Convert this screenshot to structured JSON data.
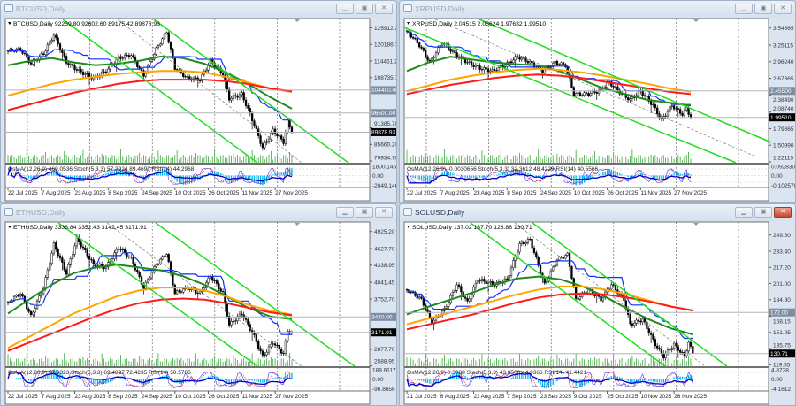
{
  "windows": [
    {
      "title": "BTCUSD,Daily",
      "active": false,
      "ohlc_header": "BTCUSD,Daily  92259.80 92602.60 89175.42 89878.93",
      "osc_header": "OsMA(12,26,9) 469.0536  Stoch(5,3,3) 57.2924 89.4697  RSI(14) 44.2968",
      "price_ticks": [
        "125912.20",
        "120186.70",
        "114461.20",
        "108735.70",
        "91385.70",
        "85660.20",
        "79934.70"
      ],
      "levels": [
        {
          "price": 104400.0,
          "label": "104400.00"
        },
        {
          "price": 96500.0,
          "label": "96500.00"
        }
      ],
      "current_price": {
        "price": 89878.93,
        "label": "89878.93"
      },
      "osc_ticks": [
        "1800.1453",
        "0.00",
        "-2049.146"
      ],
      "date_labels": [
        "22 Jul 2025",
        "7 Aug 2025",
        "23 Aug 2025",
        "8 Sep 2025",
        "24 Sep 2025",
        "10 Oct 2025",
        "26 Oct 2025",
        "11 Nov 2025",
        "27 Nov 2025"
      ],
      "ylim": [
        79324,
        128814
      ],
      "closes": [
        [
          "2025-07-22",
          118000
        ],
        [
          "2025-07-28",
          118500
        ],
        [
          "2025-08-02",
          113500
        ],
        [
          "2025-08-08",
          117000
        ],
        [
          "2025-08-13",
          123500
        ],
        [
          "2025-08-19",
          114000
        ],
        [
          "2025-08-25",
          111000
        ],
        [
          "2025-09-01",
          108500
        ],
        [
          "2025-09-07",
          111000
        ],
        [
          "2025-09-13",
          115500
        ],
        [
          "2025-09-19",
          116500
        ],
        [
          "2025-09-25",
          109500
        ],
        [
          "2025-10-01",
          118500
        ],
        [
          "2025-10-06",
          124500
        ],
        [
          "2025-10-10",
          112000
        ],
        [
          "2025-10-16",
          108500
        ],
        [
          "2025-10-22",
          108000
        ],
        [
          "2025-10-27",
          114500
        ],
        [
          "2025-11-02",
          110000
        ],
        [
          "2025-11-05",
          101500
        ],
        [
          "2025-11-11",
          103000
        ],
        [
          "2025-11-17",
          92500
        ],
        [
          "2025-11-21",
          84500
        ],
        [
          "2025-11-26",
          90500
        ],
        [
          "2025-12-01",
          86500
        ],
        [
          "2025-12-03",
          93500
        ],
        [
          "2025-12-05",
          89878.93
        ]
      ],
      "ma": [
        {
          "color": "#1f8a1f",
          "values": [
            113000,
            114500,
            115500,
            114000,
            113000,
            113500,
            114500,
            116000,
            115500,
            113500,
            110500,
            106500,
            102000,
            98000
          ]
        },
        {
          "color": "#ffa500",
          "values": [
            102500,
            104500,
            106500,
            108000,
            109000,
            110000,
            110500,
            111000,
            111000,
            110500,
            109000,
            107000,
            105000,
            103800
          ]
        },
        {
          "color": "#ff1a1a",
          "values": [
            97500,
            99500,
            101500,
            103500,
            105000,
            106500,
            107500,
            108000,
            108000,
            108000,
            107500,
            106500,
            105000,
            104000
          ]
        }
      ]
    },
    {
      "title": "XRPUSD,Daily",
      "active": false,
      "ohlc_header": "XRPUSD,Daily  2.04515 2.05624 1.97632 1.99510",
      "osc_header": "OsMA(12,26,9) -0.0030656  Stoch(5,3,3) 32.3612 48.4229  RSI(14) 40.5566",
      "price_ticks": [
        "3.54865",
        "3.25115",
        "2.96240",
        "2.67365",
        "2.38490",
        "2.08740",
        "1.79865",
        "1.50990",
        "1.22115"
      ],
      "levels": [
        {
          "price": 2.455,
          "label": "2.45500"
        }
      ],
      "current_price": {
        "price": 1.9951,
        "label": "1.99510"
      },
      "osc_ticks": [
        "0.0928301",
        "0.00",
        "-0.102570"
      ],
      "date_labels": [
        "22 Jul 2025",
        "7 Aug 2025",
        "23 Aug 2025",
        "8 Sep 2025",
        "24 Sep 2025",
        "10 Oct 2025",
        "26 Oct 2025",
        "11 Nov 2025",
        "27 Nov 2025"
      ],
      "ylim": [
        1.2058,
        3.6979
      ],
      "closes": [
        [
          "2025-07-22",
          3.5
        ],
        [
          "2025-07-28",
          3.25
        ],
        [
          "2025-08-02",
          2.95
        ],
        [
          "2025-08-08",
          3.3
        ],
        [
          "2025-08-14",
          3.1
        ],
        [
          "2025-08-20",
          2.95
        ],
        [
          "2025-08-26",
          2.85
        ],
        [
          "2025-09-01",
          2.8
        ],
        [
          "2025-09-07",
          2.9
        ],
        [
          "2025-09-13",
          3.05
        ],
        [
          "2025-09-19",
          2.95
        ],
        [
          "2025-09-25",
          2.8
        ],
        [
          "2025-10-01",
          2.95
        ],
        [
          "2025-10-06",
          2.9
        ],
        [
          "2025-10-10",
          2.4
        ],
        [
          "2025-10-16",
          2.4
        ],
        [
          "2025-10-22",
          2.45
        ],
        [
          "2025-10-27",
          2.6
        ],
        [
          "2025-11-02",
          2.4
        ],
        [
          "2025-11-06",
          2.3
        ],
        [
          "2025-11-11",
          2.45
        ],
        [
          "2025-11-17",
          2.2
        ],
        [
          "2025-11-21",
          1.95
        ],
        [
          "2025-11-26",
          2.2
        ],
        [
          "2025-12-01",
          2.05
        ],
        [
          "2025-12-03",
          2.15
        ],
        [
          "2025-12-05",
          1.9951
        ]
      ],
      "ma": [
        {
          "color": "#1f8a1f",
          "values": [
            2.8,
            2.95,
            3.05,
            3.0,
            2.95,
            2.92,
            2.9,
            2.8,
            2.65,
            2.5,
            2.4,
            2.3,
            2.25,
            2.2
          ]
        },
        {
          "color": "#ffa500",
          "values": [
            2.45,
            2.55,
            2.65,
            2.72,
            2.78,
            2.82,
            2.84,
            2.82,
            2.78,
            2.72,
            2.65,
            2.58,
            2.5,
            2.44
          ]
        },
        {
          "color": "#ff1a1a",
          "values": [
            2.4,
            2.48,
            2.56,
            2.62,
            2.68,
            2.72,
            2.74,
            2.72,
            2.68,
            2.62,
            2.56,
            2.5,
            2.44,
            2.4
          ]
        }
      ]
    },
    {
      "title": "ETHUSD,Daily",
      "active": false,
      "ohlc_header": "ETHUSD,Daily  3336.84 3352.43 3142.45 3171.91",
      "osc_header": "OsMA(12,26,9) 57.3323  Stoch(5,3,3) 69.4897 72.4235  RSI(14) 50.5706",
      "price_ticks": [
        "4925.20",
        "4627.70",
        "4338.95",
        "4041.45",
        "3752.70",
        "2877.70",
        "2588.95"
      ],
      "levels": [
        {
          "price": 3440.0,
          "label": "3440.00"
        }
      ],
      "current_price": {
        "price": 3171.91,
        "label": "3171.91"
      },
      "osc_ticks": [
        "189.9117",
        "0.00",
        "-96.8656"
      ],
      "date_labels": [
        "22 Jul 2025",
        "7 Aug 2025",
        "23 Aug 2025",
        "8 Sep 2025",
        "24 Sep 2025",
        "10 Oct 2025",
        "26 Oct 2025",
        "11 Nov 2025",
        "27 Nov 2025"
      ],
      "ylim": [
        2584,
        5074
      ],
      "closes": [
        [
          "2025-07-22",
          3700
        ],
        [
          "2025-07-28",
          3850
        ],
        [
          "2025-08-02",
          3450
        ],
        [
          "2025-08-08",
          3950
        ],
        [
          "2025-08-13",
          4700
        ],
        [
          "2025-08-19",
          4200
        ],
        [
          "2025-08-24",
          4800
        ],
        [
          "2025-09-01",
          4350
        ],
        [
          "2025-09-07",
          4300
        ],
        [
          "2025-09-13",
          4650
        ],
        [
          "2025-09-19",
          4450
        ],
        [
          "2025-09-25",
          3950
        ],
        [
          "2025-10-01",
          4350
        ],
        [
          "2025-10-06",
          4550
        ],
        [
          "2025-10-10",
          3850
        ],
        [
          "2025-10-16",
          3950
        ],
        [
          "2025-10-22",
          3850
        ],
        [
          "2025-10-27",
          4150
        ],
        [
          "2025-11-02",
          3850
        ],
        [
          "2025-11-05",
          3300
        ],
        [
          "2025-11-11",
          3500
        ],
        [
          "2025-11-17",
          3100
        ],
        [
          "2025-11-21",
          2750
        ],
        [
          "2025-11-26",
          3000
        ],
        [
          "2025-12-01",
          2800
        ],
        [
          "2025-12-03",
          3200
        ],
        [
          "2025-12-05",
          3171.91
        ]
      ],
      "ma": [
        {
          "color": "#1f8a1f",
          "values": [
            3500,
            3750,
            4000,
            4200,
            4300,
            4350,
            4300,
            4250,
            4150,
            4000,
            3800,
            3600,
            3450,
            3400
          ]
        },
        {
          "color": "#ffa500",
          "values": [
            2900,
            3100,
            3300,
            3500,
            3650,
            3800,
            3900,
            3950,
            3950,
            3900,
            3800,
            3650,
            3550,
            3480
          ]
        },
        {
          "color": "#ff1a1a",
          "values": [
            2850,
            3000,
            3150,
            3300,
            3450,
            3580,
            3680,
            3740,
            3760,
            3740,
            3680,
            3600,
            3520,
            3470
          ]
        }
      ]
    },
    {
      "title": "SOLUSD,Daily",
      "active": true,
      "ohlc_header": "SOLUSD,Daily  137.02 137.70 128.88 130.71",
      "osc_header": "OsMA(12,26,9) 0.3088  Stoch(5,3,3) 43.8566 44.9366  RSI(14) 41.4421",
      "price_ticks": [
        "249.60",
        "233.40",
        "217.20",
        "201.00",
        "184.80",
        "168.15",
        "151.95",
        "135.75",
        "119.55"
      ],
      "levels": [
        {
          "price": 172.0,
          "label": "172.00"
        }
      ],
      "current_price": {
        "price": 130.71,
        "label": "130.71"
      },
      "osc_ticks": [
        "4.8728",
        "0.00",
        "-4.1612"
      ],
      "date_labels": [
        "21 Jul 2025",
        "6 Aug 2025",
        "22 Aug 2025",
        "7 Sep 2025",
        "23 Sep 2025",
        "9 Oct 2025",
        "25 Oct 2025",
        "10 Nov 2025",
        "26 Nov 2025"
      ],
      "ylim": [
        118.07,
        261.8
      ],
      "closes": [
        [
          "2025-07-21",
          195
        ],
        [
          "2025-07-28",
          185
        ],
        [
          "2025-08-02",
          162
        ],
        [
          "2025-08-08",
          175
        ],
        [
          "2025-08-14",
          200
        ],
        [
          "2025-08-19",
          182
        ],
        [
          "2025-08-24",
          205
        ],
        [
          "2025-09-01",
          200
        ],
        [
          "2025-09-07",
          205
        ],
        [
          "2025-09-13",
          240
        ],
        [
          "2025-09-18",
          245
        ],
        [
          "2025-09-25",
          200
        ],
        [
          "2025-10-01",
          225
        ],
        [
          "2025-10-06",
          230
        ],
        [
          "2025-10-10",
          185
        ],
        [
          "2025-10-16",
          195
        ],
        [
          "2025-10-22",
          185
        ],
        [
          "2025-10-27",
          200
        ],
        [
          "2025-11-02",
          185
        ],
        [
          "2025-11-05",
          160
        ],
        [
          "2025-11-11",
          165
        ],
        [
          "2025-11-17",
          140
        ],
        [
          "2025-11-21",
          128
        ],
        [
          "2025-11-26",
          140
        ],
        [
          "2025-12-01",
          128
        ],
        [
          "2025-12-03",
          142
        ],
        [
          "2025-12-05",
          130.71
        ]
      ],
      "ma": [
        {
          "color": "#1f8a1f",
          "values": [
            170,
            178,
            185,
            192,
            200,
            206,
            208,
            205,
            198,
            188,
            176,
            165,
            156,
            150
          ]
        },
        {
          "color": "#ffa500",
          "values": [
            160,
            166,
            172,
            178,
            184,
            190,
            195,
            198,
            198,
            195,
            190,
            184,
            178,
            174
          ]
        },
        {
          "color": "#ff1a1a",
          "values": [
            155,
            160,
            165,
            170,
            176,
            182,
            187,
            190,
            191,
            190,
            187,
            183,
            178,
            174
          ]
        }
      ]
    }
  ],
  "colors": {
    "channel": "#22dd22",
    "volume": "#3aa83a",
    "histogram": "#00b4f0",
    "rsi": "#0000c8",
    "stoch": "#3c3cff",
    "signal": "#ff2020"
  }
}
